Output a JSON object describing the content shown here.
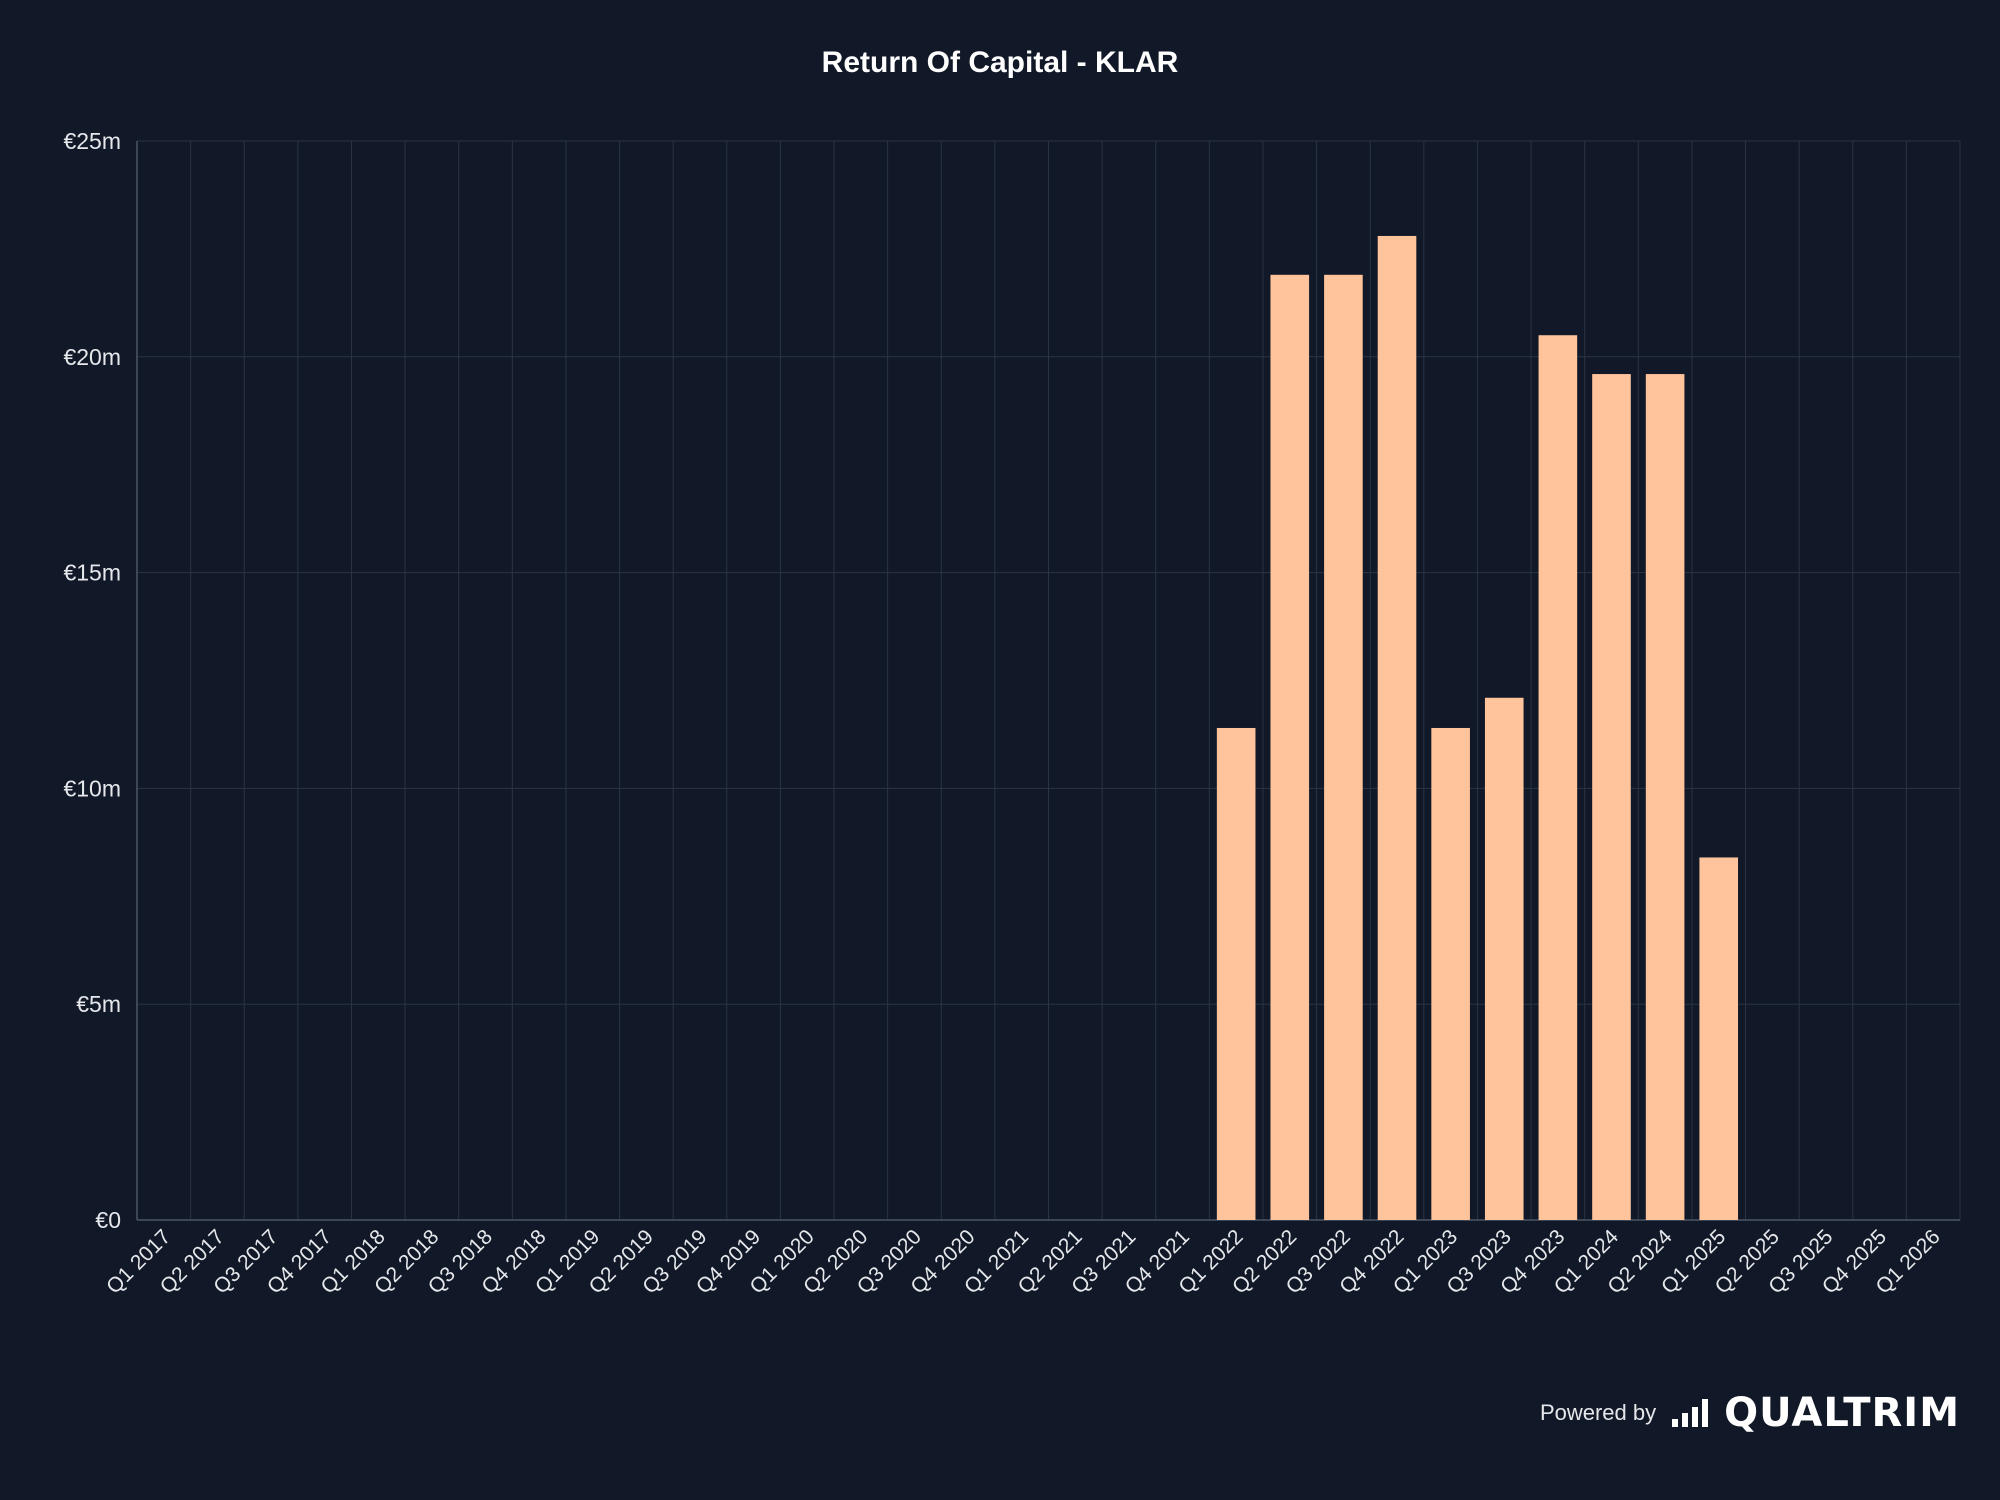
{
  "chart_data": {
    "type": "bar",
    "title": "Return Of Capital - KLAR",
    "xlabel": "",
    "ylabel": "",
    "ylim": [
      0,
      25
    ],
    "yticks": [
      "€0",
      "€5m",
      "€10m",
      "€15m",
      "€20m",
      "€25m"
    ],
    "grid": true,
    "bar_color": "#ffc49b",
    "categories": [
      "Q1 2017",
      "Q2 2017",
      "Q3 2017",
      "Q4 2017",
      "Q1 2018",
      "Q2 2018",
      "Q3 2018",
      "Q4 2018",
      "Q1 2019",
      "Q2 2019",
      "Q3 2019",
      "Q4 2019",
      "Q1 2020",
      "Q2 2020",
      "Q3 2020",
      "Q4 2020",
      "Q1 2021",
      "Q2 2021",
      "Q3 2021",
      "Q4 2021",
      "Q1 2022",
      "Q2 2022",
      "Q3 2022",
      "Q4 2022",
      "Q1 2023",
      "Q3 2023",
      "Q4 2023",
      "Q1 2024",
      "Q2 2024",
      "Q1 2025",
      "Q2 2025",
      "Q3 2025",
      "Q4 2025",
      "Q1 2026"
    ],
    "values": [
      0,
      0,
      0,
      0,
      0,
      0,
      0,
      0,
      0,
      0,
      0,
      0,
      0,
      0,
      0,
      0,
      0,
      0,
      0,
      0,
      11.4,
      21.9,
      21.9,
      22.8,
      11.4,
      12.1,
      20.5,
      19.6,
      19.6,
      8.4,
      0,
      0,
      0,
      0
    ]
  },
  "branding": {
    "powered_by": "Powered by",
    "brand_name": "QUALTRIM",
    "icon": "bar-chart-logo-icon"
  }
}
